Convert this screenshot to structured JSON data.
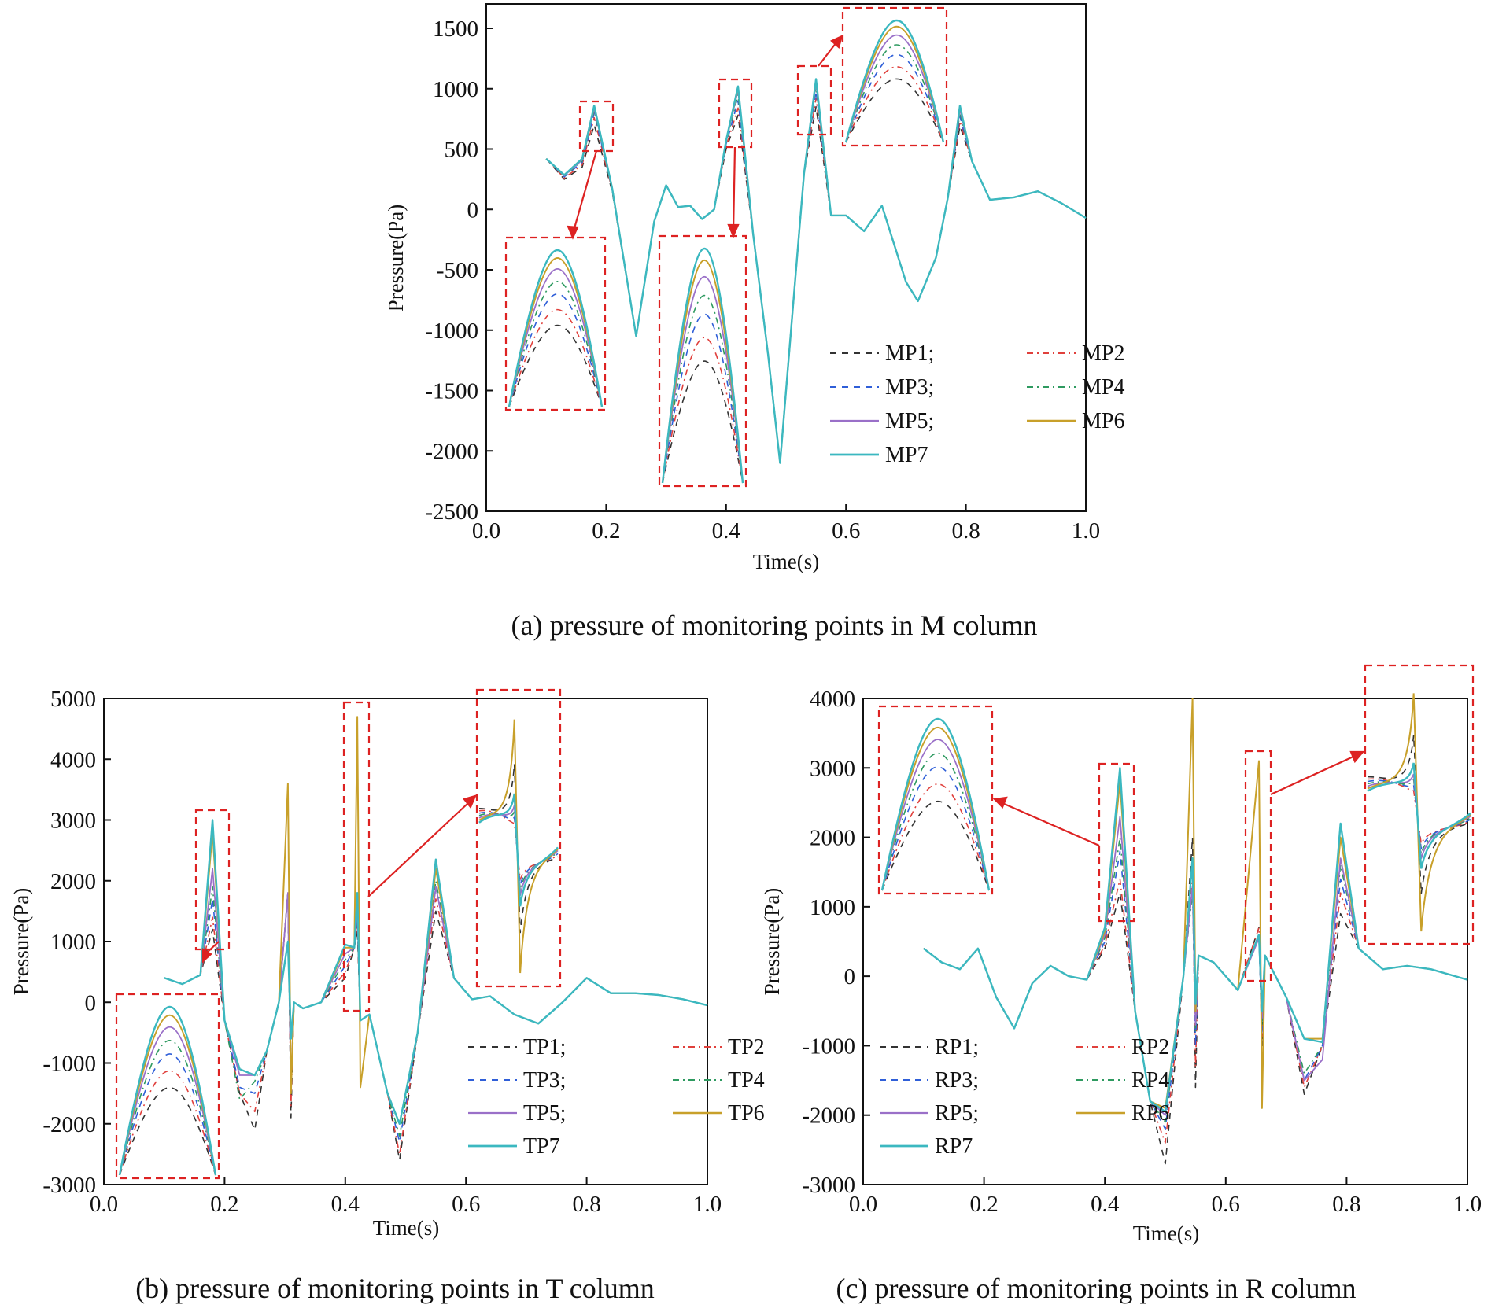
{
  "colors": {
    "p1": "#333333",
    "p2": "#e0403c",
    "p3": "#2f5fd8",
    "p4": "#2e9a60",
    "p5": "#9a70c8",
    "p6": "#c8a02a",
    "p7": "#3bb8c0",
    "box": "#dd2222"
  },
  "chart_data": [
    {
      "type": "line",
      "caption": "(a) pressure of monitoring points in M column",
      "xlabel": "Time(s)",
      "ylabel": "Pressure(Pa)",
      "xlim": [
        0.0,
        1.0
      ],
      "ylim": [
        -2500,
        1500
      ],
      "xticks": [
        "0.0",
        "0.2",
        "0.4",
        "0.6",
        "0.8",
        "1.0"
      ],
      "yticks": [
        "-2500",
        "-2000",
        "-1500",
        "-1000",
        "-500",
        "0",
        "500",
        "1000",
        "1500"
      ],
      "legend": [
        "MP1;",
        "MP2",
        "MP3;",
        "MP4",
        "MP5;",
        "MP6",
        "MP7"
      ],
      "x": [
        0.1,
        0.13,
        0.16,
        0.18,
        0.21,
        0.25,
        0.28,
        0.3,
        0.32,
        0.34,
        0.36,
        0.38,
        0.4,
        0.42,
        0.445,
        0.47,
        0.49,
        0.51,
        0.53,
        0.55,
        0.575,
        0.6,
        0.63,
        0.66,
        0.7,
        0.72,
        0.75,
        0.77,
        0.79,
        0.81,
        0.84,
        0.88,
        0.92,
        0.96,
        1.0
      ],
      "series": [
        {
          "name": "MP1",
          "values": [
            420,
            250,
            350,
            700,
            150,
            -1050,
            -100,
            200,
            20,
            30,
            -80,
            0,
            500,
            780,
            -200,
            -1200,
            -2100,
            -900,
            300,
            850,
            -50,
            -50,
            -180,
            30,
            -600,
            -760,
            -400,
            100,
            690,
            400,
            80,
            100,
            150,
            50,
            -70
          ]
        },
        {
          "name": "MP2",
          "values": [
            420,
            260,
            370,
            760,
            160,
            -1050,
            -100,
            200,
            20,
            30,
            -80,
            0,
            520,
            840,
            -200,
            -1200,
            -2100,
            -900,
            300,
            920,
            -50,
            -50,
            -180,
            30,
            -600,
            -760,
            -400,
            100,
            730,
            400,
            80,
            100,
            150,
            50,
            -70
          ]
        },
        {
          "name": "MP3",
          "values": [
            420,
            270,
            390,
            800,
            170,
            -1050,
            -100,
            200,
            20,
            30,
            -80,
            0,
            540,
            900,
            -200,
            -1200,
            -2100,
            -900,
            300,
            980,
            -50,
            -50,
            -180,
            30,
            -600,
            -760,
            -400,
            100,
            770,
            400,
            80,
            100,
            150,
            50,
            -70
          ]
        },
        {
          "name": "MP4",
          "values": [
            420,
            275,
            400,
            820,
            170,
            -1050,
            -100,
            200,
            20,
            30,
            -80,
            0,
            550,
            950,
            -200,
            -1200,
            -2100,
            -900,
            300,
            1020,
            -50,
            -50,
            -180,
            30,
            -600,
            -760,
            -400,
            100,
            800,
            400,
            80,
            100,
            150,
            50,
            -70
          ]
        },
        {
          "name": "MP5",
          "values": [
            420,
            280,
            410,
            840,
            175,
            -1050,
            -100,
            200,
            20,
            30,
            -80,
            0,
            560,
            990,
            -200,
            -1200,
            -2100,
            -900,
            300,
            1050,
            -50,
            -50,
            -180,
            30,
            -600,
            -760,
            -400,
            100,
            830,
            400,
            80,
            100,
            150,
            50,
            -70
          ]
        },
        {
          "name": "MP6",
          "values": [
            420,
            285,
            420,
            855,
            175,
            -1050,
            -100,
            200,
            20,
            30,
            -80,
            0,
            565,
            1010,
            -200,
            -1200,
            -2100,
            -900,
            300,
            1075,
            -50,
            -50,
            -180,
            30,
            -600,
            -760,
            -400,
            100,
            855,
            400,
            80,
            100,
            150,
            50,
            -70
          ]
        },
        {
          "name": "MP7",
          "values": [
            420,
            285,
            420,
            860,
            175,
            -1050,
            -100,
            200,
            20,
            30,
            -80,
            0,
            570,
            1020,
            -200,
            -1200,
            -2100,
            -900,
            300,
            1080,
            -50,
            -50,
            -180,
            30,
            -600,
            -760,
            -400,
            100,
            860,
            400,
            80,
            100,
            150,
            50,
            -70
          ]
        }
      ]
    },
    {
      "type": "line",
      "caption": "(b) pressure of monitoring points in T column",
      "xlabel": "Time(s)",
      "ylabel": "Pressure(Pa)",
      "xlim": [
        0.0,
        1.0
      ],
      "ylim": [
        -3000,
        5000
      ],
      "xticks": [
        "0.0",
        "0.2",
        "0.4",
        "0.6",
        "0.8",
        "1.0"
      ],
      "yticks": [
        "-3000",
        "-2000",
        "-1000",
        "0",
        "1000",
        "2000",
        "3000",
        "4000",
        "5000"
      ],
      "legend": [
        "TP1;",
        "TP2",
        "TP3;",
        "TP4",
        "TP5;",
        "TP6",
        "TP7"
      ],
      "x": [
        0.1,
        0.13,
        0.16,
        0.18,
        0.2,
        0.225,
        0.25,
        0.27,
        0.29,
        0.305,
        0.31,
        0.315,
        0.33,
        0.36,
        0.4,
        0.415,
        0.42,
        0.425,
        0.44,
        0.47,
        0.49,
        0.52,
        0.55,
        0.58,
        0.61,
        0.64,
        0.68,
        0.72,
        0.76,
        0.8,
        0.84,
        0.88,
        0.92,
        0.96,
        1.0
      ],
      "series": [
        {
          "name": "TP1",
          "values": [
            400,
            300,
            450,
            1200,
            -300,
            -1500,
            -2100,
            -800,
            0,
            1800,
            -1900,
            0,
            -100,
            0,
            400,
            900,
            1200,
            -300,
            -200,
            -1500,
            -2600,
            -500,
            1500,
            400,
            50,
            100,
            -200,
            -350,
            0,
            400,
            150,
            150,
            120,
            50,
            -50
          ]
        },
        {
          "name": "TP2",
          "values": [
            400,
            300,
            450,
            1400,
            -300,
            -1500,
            -1800,
            -800,
            0,
            1800,
            -1700,
            0,
            -100,
            0,
            500,
            900,
            1300,
            -300,
            -200,
            -1500,
            -2500,
            -500,
            1700,
            400,
            50,
            100,
            -200,
            -350,
            0,
            400,
            150,
            150,
            120,
            50,
            -50
          ]
        },
        {
          "name": "TP3",
          "values": [
            400,
            300,
            450,
            1700,
            -300,
            -1400,
            -1500,
            -800,
            0,
            1800,
            -1500,
            0,
            -100,
            0,
            600,
            900,
            1400,
            -300,
            -200,
            -1500,
            -2300,
            -500,
            1900,
            400,
            50,
            100,
            -200,
            -350,
            0,
            400,
            150,
            150,
            120,
            50,
            -50
          ]
        },
        {
          "name": "TP4",
          "values": [
            400,
            300,
            450,
            1900,
            -300,
            -1600,
            -1300,
            -800,
            0,
            1800,
            -1400,
            0,
            -100,
            0,
            700,
            900,
            1500,
            -300,
            -200,
            -1500,
            -2200,
            -500,
            2000,
            400,
            50,
            100,
            -200,
            -350,
            0,
            400,
            150,
            150,
            120,
            50,
            -50
          ]
        },
        {
          "name": "TP5",
          "values": [
            400,
            300,
            450,
            2200,
            -300,
            -1200,
            -1200,
            -800,
            0,
            1800,
            -1400,
            0,
            -100,
            0,
            800,
            900,
            1600,
            -300,
            -200,
            -1500,
            -2000,
            -500,
            1900,
            400,
            50,
            100,
            -200,
            -350,
            0,
            400,
            150,
            150,
            120,
            50,
            -50
          ]
        },
        {
          "name": "TP6",
          "values": [
            400,
            300,
            450,
            2800,
            -300,
            -1100,
            -1200,
            -800,
            0,
            3600,
            -1500,
            0,
            -100,
            0,
            900,
            900,
            4700,
            -1400,
            -200,
            -1500,
            -2000,
            -500,
            2200,
            400,
            50,
            100,
            -200,
            -350,
            0,
            400,
            150,
            150,
            120,
            50,
            -50
          ]
        },
        {
          "name": "TP7",
          "values": [
            400,
            300,
            450,
            3000,
            -300,
            -1100,
            -1200,
            -800,
            0,
            1000,
            -600,
            0,
            -100,
            0,
            950,
            900,
            1800,
            -300,
            -200,
            -1500,
            -2000,
            -500,
            2350,
            400,
            50,
            100,
            -200,
            -350,
            0,
            400,
            150,
            150,
            120,
            50,
            -50
          ]
        }
      ]
    },
    {
      "type": "line",
      "caption": "(c) pressure of monitoring points in R column",
      "xlabel": "Time(s)",
      "ylabel": "Pressure(Pa)",
      "xlim": [
        0.0,
        1.0
      ],
      "ylim": [
        -3000,
        4000
      ],
      "xticks": [
        "0.0",
        "0.2",
        "0.4",
        "0.6",
        "0.8",
        "1.0"
      ],
      "yticks": [
        "-3000",
        "-2000",
        "-1000",
        "0",
        "1000",
        "2000",
        "3000",
        "4000"
      ],
      "legend": [
        "RP1;",
        "RP2",
        "RP3;",
        "RP4",
        "RP5;",
        "RP6",
        "RP7"
      ],
      "x": [
        0.1,
        0.13,
        0.16,
        0.19,
        0.22,
        0.25,
        0.28,
        0.31,
        0.34,
        0.37,
        0.4,
        0.425,
        0.45,
        0.475,
        0.5,
        0.53,
        0.545,
        0.55,
        0.555,
        0.58,
        0.62,
        0.655,
        0.66,
        0.665,
        0.7,
        0.73,
        0.76,
        0.79,
        0.82,
        0.86,
        0.9,
        0.94,
        1.0
      ],
      "series": [
        {
          "name": "RP1",
          "values": [
            400,
            200,
            100,
            400,
            -300,
            -750,
            -100,
            150,
            0,
            -50,
            400,
            1200,
            -500,
            -1800,
            -2700,
            0,
            2000,
            -1600,
            300,
            200,
            -200,
            700,
            -1000,
            300,
            -300,
            -1700,
            -1000,
            900,
            400,
            100,
            150,
            100,
            -50
          ]
        },
        {
          "name": "RP2",
          "values": [
            400,
            200,
            100,
            400,
            -300,
            -750,
            -100,
            150,
            0,
            -50,
            450,
            1400,
            -500,
            -1800,
            -2400,
            0,
            1500,
            -1300,
            300,
            200,
            -200,
            700,
            -900,
            300,
            -300,
            -1600,
            -1000,
            1200,
            400,
            100,
            150,
            100,
            -50
          ]
        },
        {
          "name": "RP3",
          "values": [
            400,
            200,
            100,
            400,
            -300,
            -750,
            -100,
            150,
            0,
            -50,
            500,
            1800,
            -500,
            -1800,
            -2200,
            0,
            1300,
            -1000,
            300,
            200,
            -200,
            600,
            -800,
            300,
            -300,
            -1500,
            -1000,
            1400,
            400,
            100,
            150,
            100,
            -50
          ]
        },
        {
          "name": "RP4",
          "values": [
            400,
            200,
            100,
            400,
            -300,
            -750,
            -100,
            150,
            0,
            -50,
            550,
            2000,
            -500,
            -1800,
            -2100,
            0,
            1200,
            -800,
            300,
            200,
            -200,
            600,
            -700,
            300,
            -300,
            -1400,
            -1000,
            1600,
            400,
            100,
            150,
            100,
            -50
          ]
        },
        {
          "name": "RP5",
          "values": [
            400,
            200,
            100,
            400,
            -300,
            -750,
            -100,
            150,
            0,
            -50,
            600,
            2300,
            -500,
            -1800,
            -2000,
            0,
            1300,
            -700,
            300,
            200,
            -200,
            550,
            -600,
            300,
            -300,
            -1500,
            -1200,
            1700,
            400,
            100,
            150,
            100,
            -50
          ]
        },
        {
          "name": "RP6",
          "values": [
            400,
            200,
            100,
            400,
            -300,
            -750,
            -100,
            150,
            0,
            -50,
            650,
            2800,
            -500,
            -1800,
            -1900,
            0,
            4000,
            -500,
            300,
            200,
            -200,
            3100,
            -1900,
            300,
            -300,
            -900,
            -900,
            2000,
            400,
            100,
            150,
            100,
            -50
          ]
        },
        {
          "name": "RP7",
          "values": [
            400,
            200,
            100,
            400,
            -300,
            -750,
            -100,
            150,
            0,
            -50,
            700,
            3000,
            -500,
            -1800,
            -1950,
            0,
            1700,
            -400,
            300,
            200,
            -200,
            600,
            -500,
            300,
            -300,
            -900,
            -950,
            2200,
            400,
            100,
            150,
            100,
            -50
          ]
        }
      ]
    }
  ]
}
